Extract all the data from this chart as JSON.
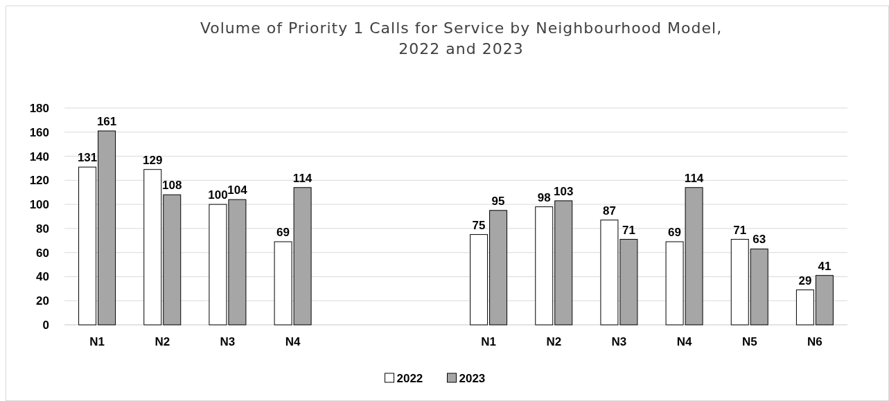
{
  "chart_data": {
    "type": "bar",
    "title": "Volume of Priority 1 Calls for Service by Neighbourhood Model,\n2022 and 2023",
    "categories": [
      "N1",
      "N2",
      "N3",
      "N4",
      null,
      null,
      "N1",
      "N2",
      "N3",
      "N4",
      "N5",
      "N6"
    ],
    "series": [
      {
        "name": "2022",
        "color": "#ffffff",
        "values": [
          131,
          129,
          100,
          69,
          null,
          null,
          75,
          98,
          87,
          69,
          71,
          29
        ]
      },
      {
        "name": "2023",
        "color": "#a6a6a6",
        "values": [
          161,
          108,
          104,
          114,
          null,
          null,
          95,
          103,
          71,
          114,
          63,
          41
        ]
      }
    ],
    "ylim": [
      0,
      180
    ],
    "yticks": [
      0,
      20,
      40,
      60,
      80,
      100,
      120,
      140,
      160,
      180
    ],
    "grid": "y",
    "legend": "bottom",
    "data_labels": true
  }
}
